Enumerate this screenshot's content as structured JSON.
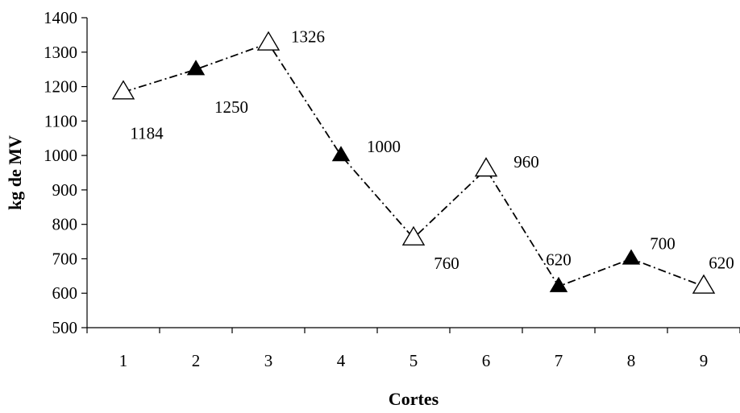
{
  "chart_data": {
    "type": "line",
    "xlabel": "Cortes",
    "ylabel": "kg de MV",
    "ylim": [
      500,
      1400
    ],
    "yticks": [
      500,
      600,
      700,
      800,
      900,
      1000,
      1100,
      1200,
      1300,
      1400
    ],
    "categories": [
      "1",
      "2",
      "3",
      "4",
      "5",
      "6",
      "7",
      "8",
      "9"
    ],
    "series": [
      {
        "values": [
          1184,
          1250,
          1326,
          1000,
          760,
          960,
          620,
          700,
          620
        ],
        "markers": [
          "open-triangle",
          "filled-triangle",
          "open-triangle",
          "filled-triangle",
          "open-triangle",
          "open-triangle",
          "filled-triangle",
          "filled-triangle",
          "open-triangle"
        ],
        "labels": [
          "1184",
          "1250",
          "1326",
          "1000",
          "760",
          "960",
          "620",
          "700",
          "620"
        ]
      }
    ],
    "grid": false,
    "legend": "none",
    "line_style": "dash-dot",
    "color": "#000000"
  }
}
